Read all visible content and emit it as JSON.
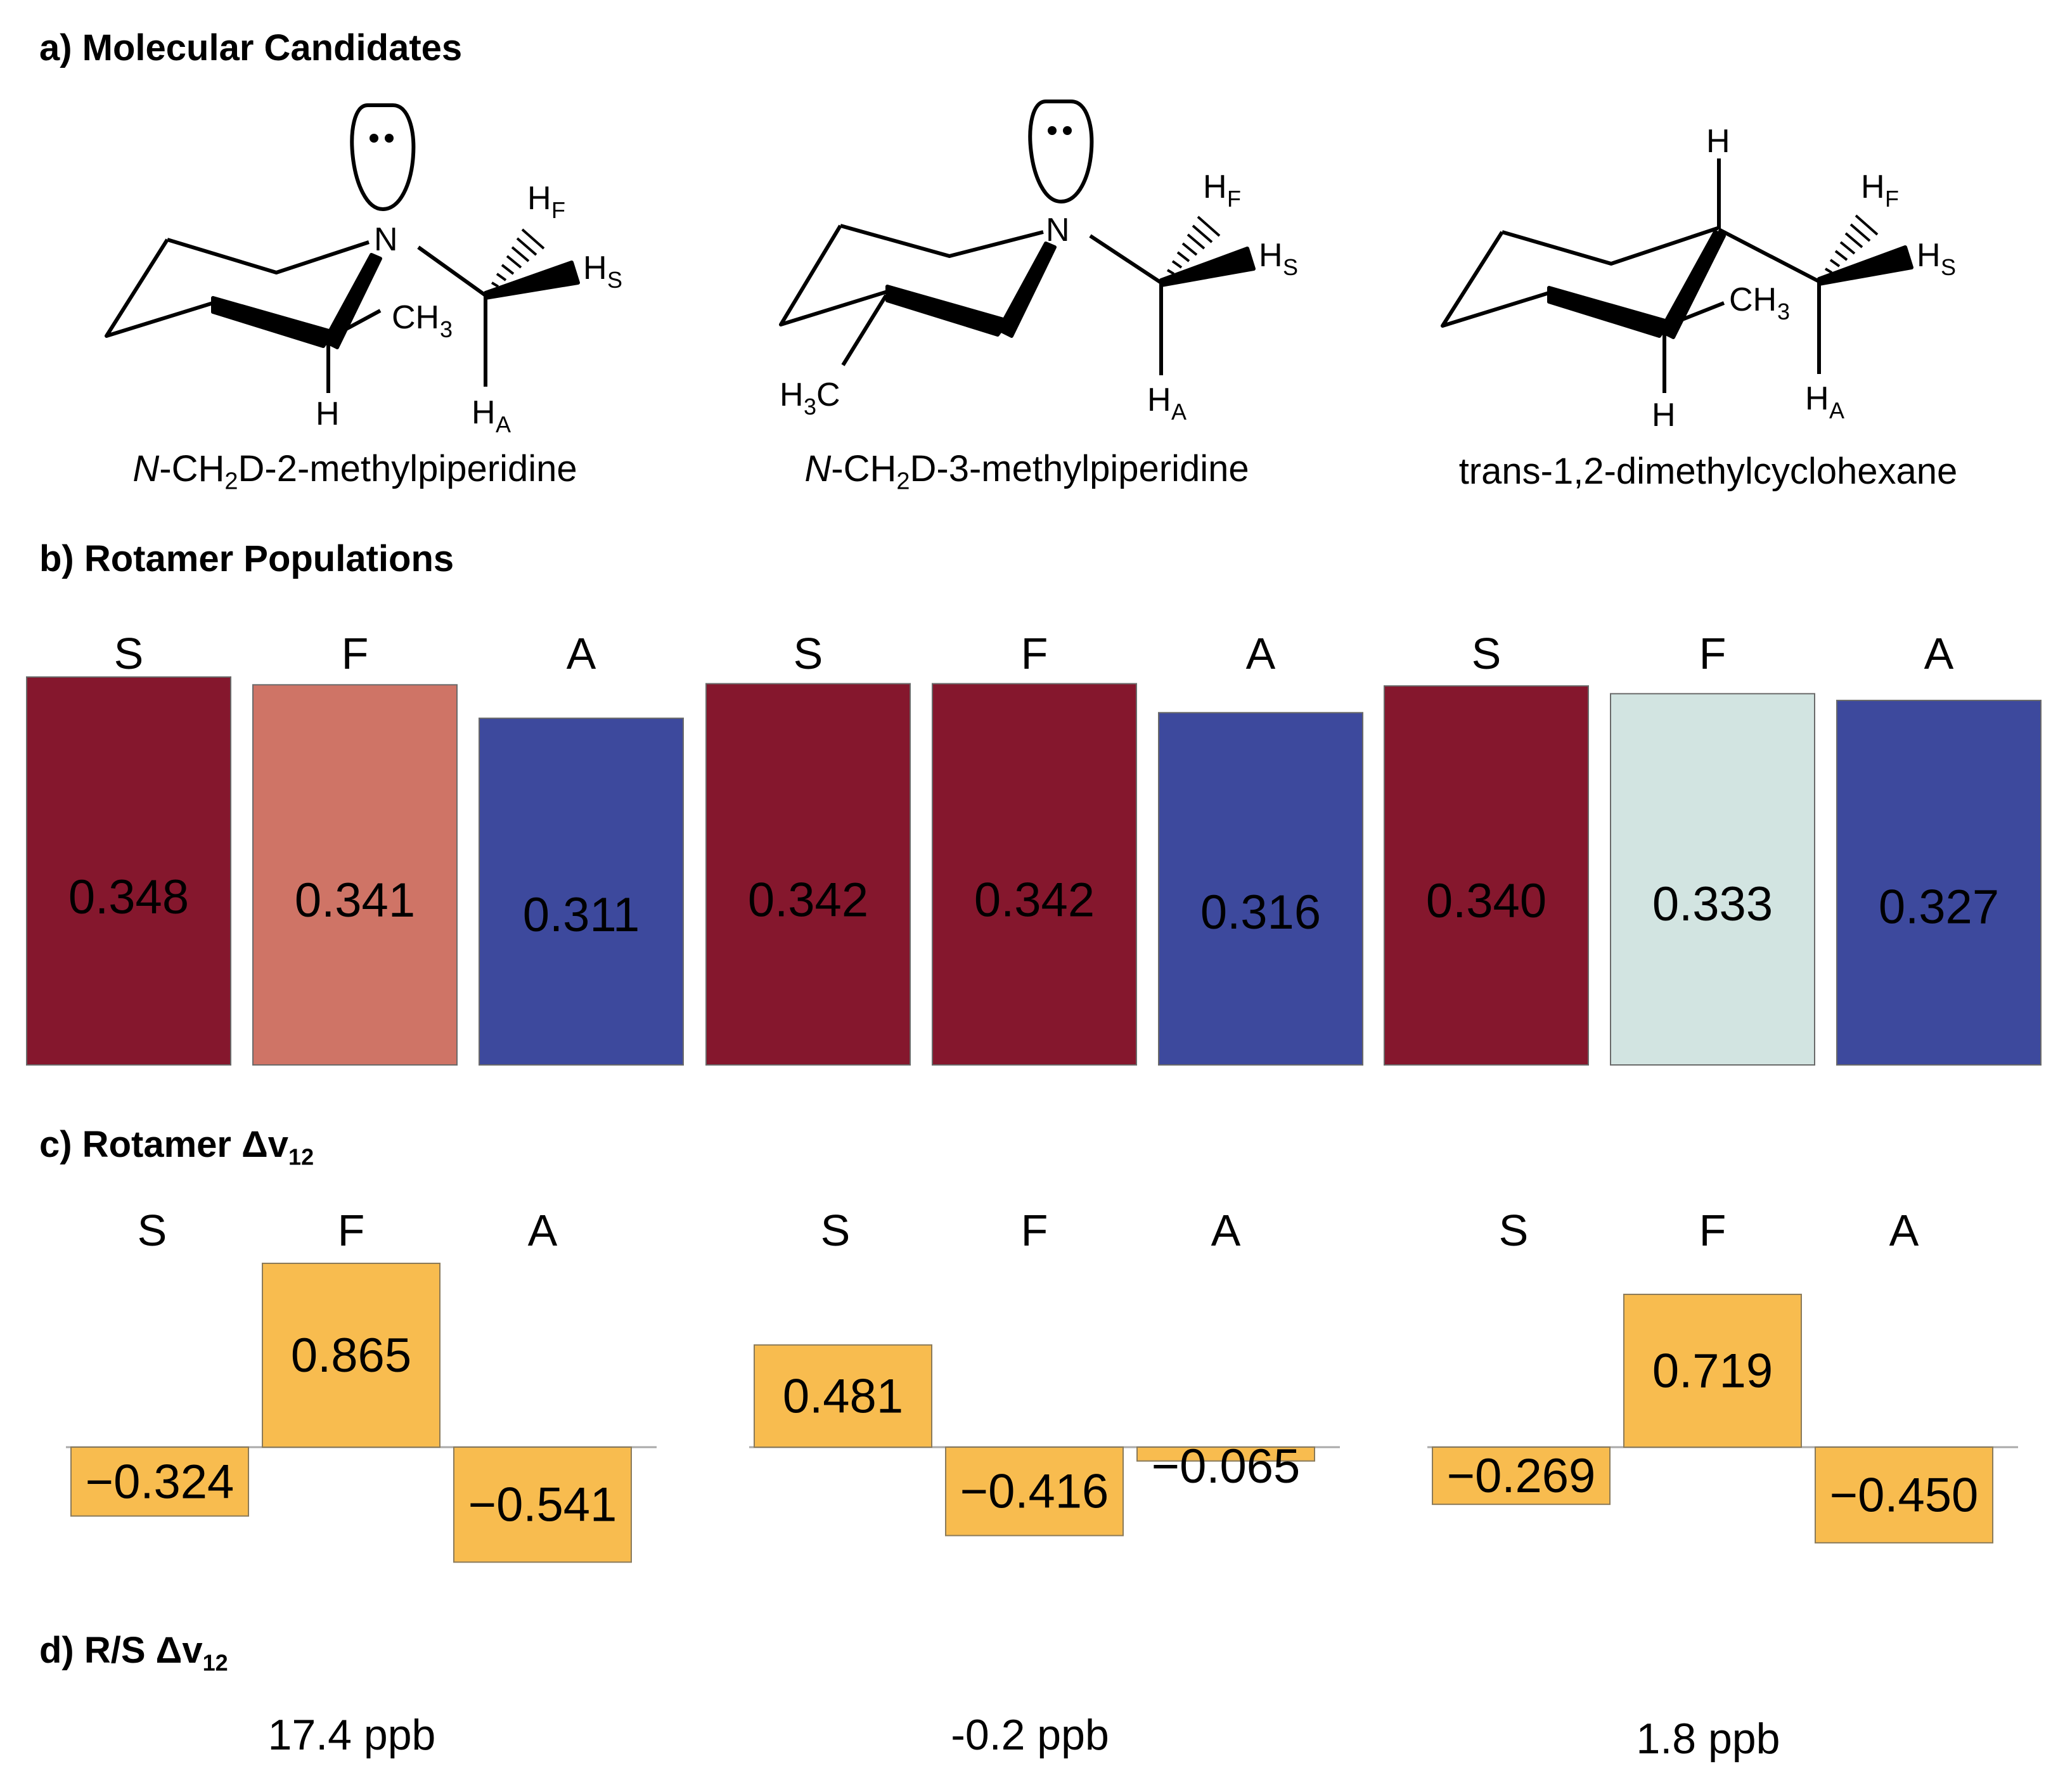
{
  "panels": {
    "a": "a) Molecular Candidates",
    "b": "b) Rotamer Populations",
    "c_prefix": "c) Rotamer ",
    "c_delta": "Δv",
    "c_sub": "12",
    "d_prefix": "d) R/S ",
    "d_delta": "Δv",
    "d_sub": "12"
  },
  "molecules": [
    {
      "name_italic": "N",
      "name_a": "-CH",
      "name_sub": "2",
      "name_b": "D-2-methylpiperidine"
    },
    {
      "name_italic": "N",
      "name_a": "-CH",
      "name_sub": "2",
      "name_b": "D-3-methylpiperidine"
    },
    {
      "name_italic": "",
      "name_a": "trans-1,2-dimethylcyclohexane",
      "name_sub": "",
      "name_b": ""
    }
  ],
  "atoms": {
    "N": "N",
    "H": "H",
    "C": "C",
    "CH": "CH",
    "three": "3",
    "F": "F",
    "S": "S",
    "A": "A"
  },
  "chart_data": [
    {
      "type": "bar",
      "title": "Rotamer Populations",
      "groups": [
        "N-CH2D-2-methylpiperidine",
        "N-CH2D-3-methylpiperidine",
        "trans-1,2-dimethylcyclohexane"
      ],
      "categories": [
        "S",
        "F",
        "A"
      ],
      "series": [
        {
          "name": "N-CH2D-2-methylpiperidine",
          "values": [
            0.348,
            0.341,
            0.311
          ],
          "labels": [
            "0.348",
            "0.341",
            "0.311"
          ],
          "colors": [
            "#85172d",
            "#cf7466",
            "#3d499d"
          ]
        },
        {
          "name": "N-CH2D-3-methylpiperidine",
          "values": [
            0.342,
            0.342,
            0.316
          ],
          "labels": [
            "0.342",
            "0.342",
            "0.316"
          ],
          "colors": [
            "#85172d",
            "#85172d",
            "#3d499d"
          ]
        },
        {
          "name": "trans-1,2-dimethylcyclohexane",
          "values": [
            0.34,
            0.333,
            0.327
          ],
          "labels": [
            "0.340",
            "0.333",
            "0.327"
          ],
          "colors": [
            "#85172d",
            "#d2e4e1",
            "#3d499d"
          ]
        }
      ]
    },
    {
      "type": "bar",
      "title": "Rotamer Δv12",
      "groups": [
        "N-CH2D-2-methylpiperidine",
        "N-CH2D-3-methylpiperidine",
        "trans-1,2-dimethylcyclohexane"
      ],
      "categories": [
        "S",
        "F",
        "A"
      ],
      "series": [
        {
          "name": "N-CH2D-2-methylpiperidine",
          "values": [
            -0.324,
            0.865,
            -0.541
          ],
          "labels": [
            "−0.324",
            "0.865",
            "−0.541"
          ]
        },
        {
          "name": "N-CH2D-3-methylpiperidine",
          "values": [
            0.481,
            -0.416,
            -0.065
          ],
          "labels": [
            "0.481",
            "−0.416",
            "−0.065"
          ]
        },
        {
          "name": "trans-1,2-dimethylcyclohexane",
          "values": [
            -0.269,
            0.719,
            -0.45
          ],
          "labels": [
            "−0.269",
            "0.719",
            "−0.450"
          ]
        }
      ],
      "bar_color": "#f8bc4f"
    },
    {
      "type": "table",
      "title": "R/S Δv12",
      "values": [
        "17.4 ppb",
        "-0.2 ppb",
        "1.8 ppb"
      ]
    }
  ]
}
